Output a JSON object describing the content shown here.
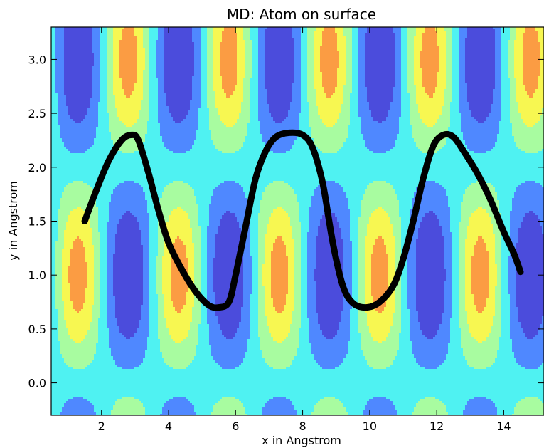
{
  "chart_data": {
    "type": "contour",
    "title": "MD: Atom on surface",
    "xlabel": "x in Angstrom",
    "ylabel": "y in Angstrom",
    "xlim": [
      0.5,
      15.2
    ],
    "ylim": [
      -0.3,
      3.3
    ],
    "xticks": [
      2,
      4,
      6,
      8,
      10,
      12,
      14
    ],
    "xtick_labels": [
      "2",
      "4",
      "6",
      "8",
      "10",
      "12",
      "14"
    ],
    "yticks": [
      0.0,
      0.5,
      1.0,
      1.5,
      2.0,
      2.5,
      3.0
    ],
    "ytick_labels": [
      "0.0",
      "0.5",
      "1.0",
      "1.5",
      "2.0",
      "2.5",
      "3.0"
    ],
    "grid": false,
    "surface": {
      "function": "cos(2*pi*(x-1.3)/3) * sin(2*pi*y/4)",
      "x_period": 3.0,
      "y_period": 4.0,
      "levels": [
        -1.0,
        -0.6,
        -0.2,
        0.2,
        0.55,
        0.85,
        1.0
      ],
      "level_colors": [
        "#4b4cdc",
        "#4f88ff",
        "#4ff2f2",
        "#a8fca0",
        "#f7f751",
        "#fb9c43",
        "#dc4e50"
      ]
    },
    "trajectory": {
      "color": "#000000",
      "x": [
        1.5,
        1.8,
        2.2,
        2.6,
        2.9,
        3.1,
        3.4,
        3.7,
        4.0,
        4.4,
        4.8,
        5.2,
        5.5,
        5.8,
        6.0,
        6.3,
        6.6,
        6.9,
        7.2,
        7.6,
        8.0,
        8.3,
        8.6,
        8.9,
        9.2,
        9.5,
        9.9,
        10.3,
        10.7,
        11.0,
        11.3,
        11.6,
        11.9,
        12.2,
        12.5,
        12.8,
        13.2,
        13.6,
        14.0,
        14.3,
        14.5
      ],
      "y": [
        1.5,
        1.75,
        2.05,
        2.25,
        2.3,
        2.25,
        1.95,
        1.6,
        1.3,
        1.05,
        0.85,
        0.72,
        0.7,
        0.75,
        1.0,
        1.45,
        1.9,
        2.15,
        2.28,
        2.32,
        2.3,
        2.18,
        1.85,
        1.3,
        0.9,
        0.74,
        0.7,
        0.75,
        0.9,
        1.15,
        1.5,
        1.9,
        2.2,
        2.3,
        2.28,
        2.15,
        1.95,
        1.7,
        1.4,
        1.2,
        1.03
      ]
    }
  }
}
